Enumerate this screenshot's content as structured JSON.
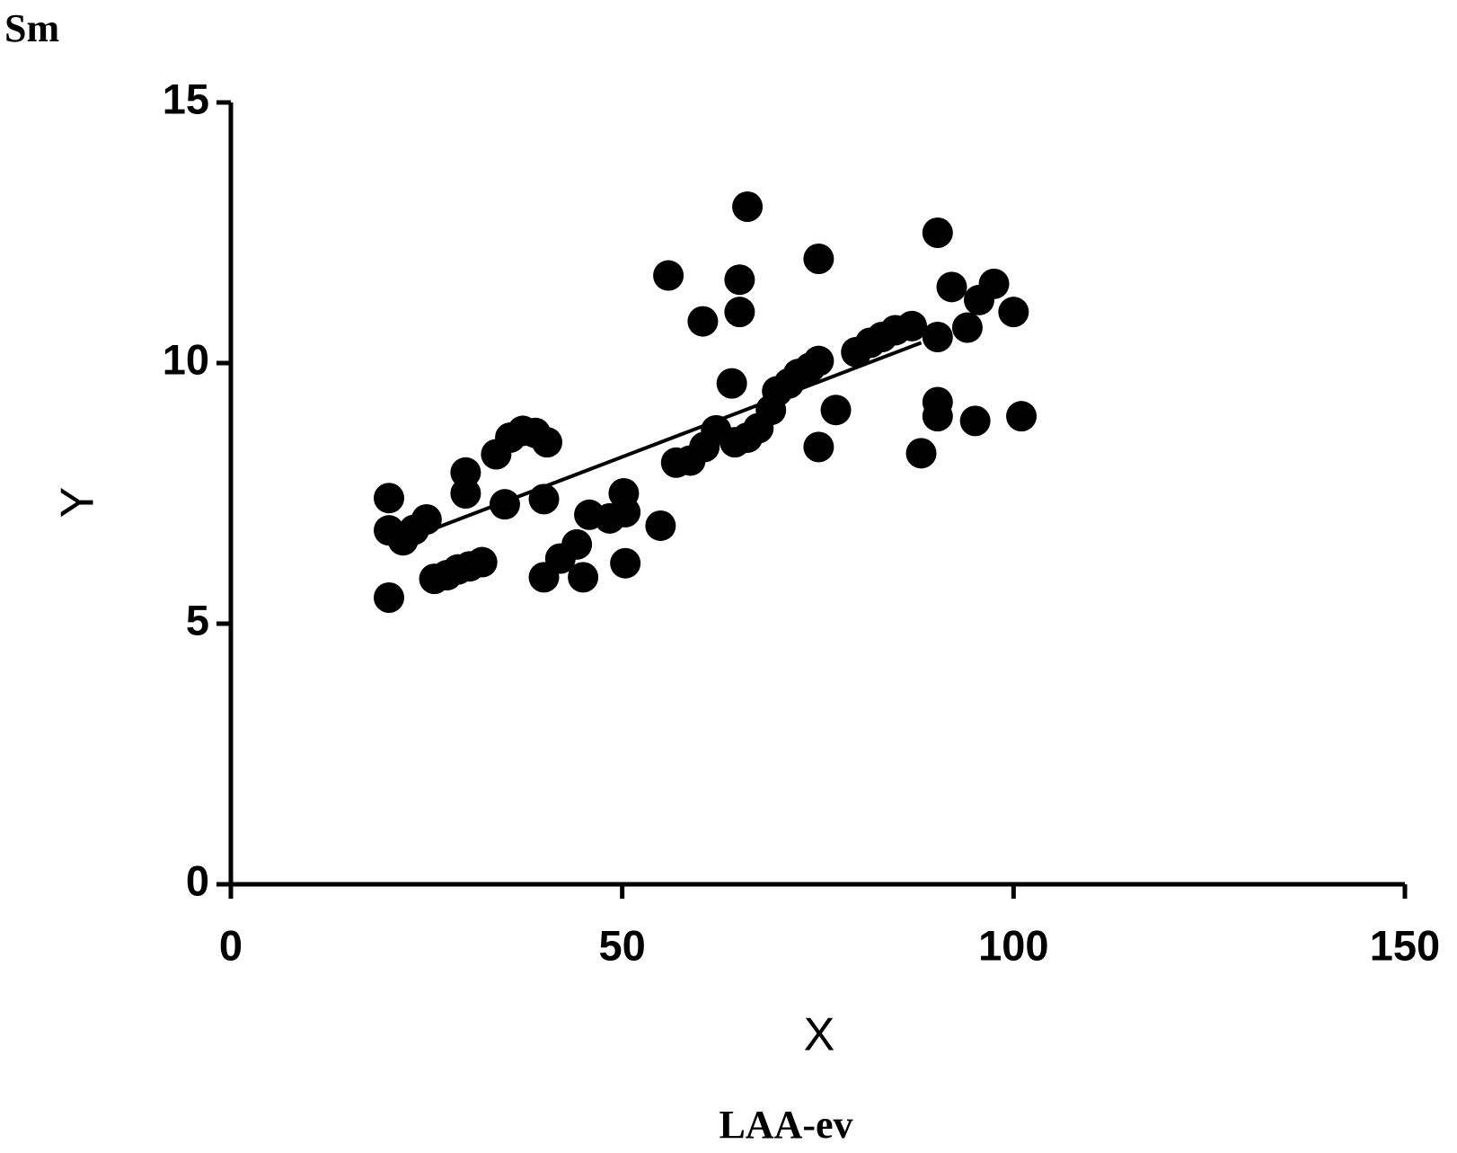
{
  "chart_data": {
    "type": "scatter",
    "title": "Sm",
    "caption": "LAA-ev",
    "x_label": "X",
    "y_label": "Y",
    "color": "#000000",
    "xlim": [
      0,
      150
    ],
    "xticks": [
      0,
      50,
      100,
      150
    ],
    "ylim": [
      0,
      15
    ],
    "yticks": [
      0,
      5,
      10,
      15
    ],
    "x": [
      20.2,
      20.2,
      20.2,
      22,
      25,
      23.4,
      26,
      27.6,
      29,
      30.5,
      32.1,
      30,
      30,
      33.9,
      35,
      35.7,
      37.3,
      38.9,
      40.4,
      40,
      40,
      42.1,
      44.2,
      45,
      45.8,
      48.4,
      50.2,
      50.4,
      50.4,
      54.9,
      55.9,
      56.9,
      58.7,
      60.3,
      60.5,
      62,
      64,
      65,
      65,
      64.4,
      66,
      66,
      67.4,
      69,
      69.8,
      71.3,
      72.5,
      74,
      75.1,
      75.1,
      75.1,
      77.3,
      79.9,
      81.7,
      83.2,
      84.9,
      87,
      88.2,
      90.3,
      90.3,
      90.3,
      90.3,
      92.1,
      94.1,
      95.1,
      95.6,
      97.5,
      100,
      101
    ],
    "y": [
      7.41,
      6.79,
      5.5,
      6.6,
      7.0,
      6.8,
      5.86,
      5.93,
      6.04,
      6.1,
      6.18,
      7.9,
      7.5,
      8.25,
      7.29,
      8.57,
      8.7,
      8.66,
      8.48,
      7.39,
      5.89,
      6.25,
      6.52,
      5.89,
      7.09,
      7.02,
      7.5,
      7.14,
      6.16,
      6.88,
      11.68,
      8.09,
      8.13,
      10.8,
      8.39,
      8.71,
      9.61,
      11.6,
      10.98,
      8.48,
      8.57,
      13,
      8.75,
      9.1,
      9.46,
      9.61,
      9.79,
      9.91,
      12,
      10.04,
      8.39,
      9.1,
      10.21,
      10.39,
      10.5,
      10.63,
      10.71,
      8.27,
      12.5,
      10.5,
      9.25,
      8.98,
      11.46,
      10.68,
      8.89,
      11.21,
      11.52,
      10.98,
      8.98
    ],
    "fit_line": {
      "x": [
        22.8,
        88.2
      ],
      "y": [
        6.64,
        10.39
      ]
    }
  }
}
